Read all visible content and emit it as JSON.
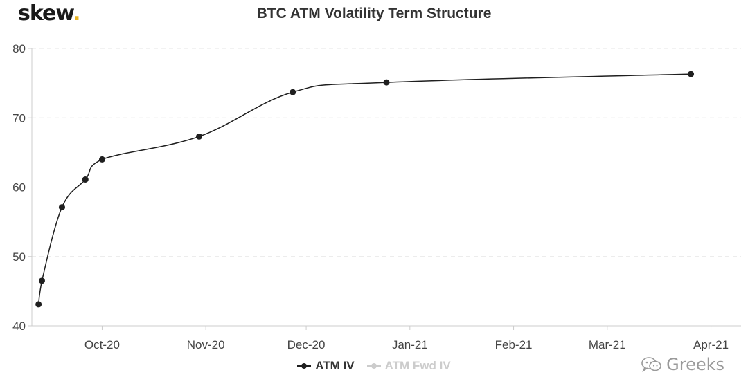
{
  "brand": {
    "name": "skew",
    "dot": "."
  },
  "watermark": {
    "text": "Greeks",
    "icon": "wechat-icon"
  },
  "colors": {
    "series_active": "#1f1f1f",
    "series_inactive": "#cccccc",
    "grid": "#e6e6e6",
    "brand_dot": "#e8b320"
  },
  "chart_data": {
    "type": "line",
    "title": "BTC ATM Volatility Term Structure",
    "xlabel": "",
    "ylabel": "",
    "ylim": [
      40,
      80
    ],
    "yticks": [
      40,
      50,
      60,
      70,
      80
    ],
    "xlim": [
      "2020-09-10",
      "2021-04-10"
    ],
    "xticks": [
      {
        "date": "2020-10-01",
        "label": "Oct-20"
      },
      {
        "date": "2020-11-01",
        "label": "Nov-20"
      },
      {
        "date": "2020-12-01",
        "label": "Dec-20"
      },
      {
        "date": "2021-01-01",
        "label": "Jan-21"
      },
      {
        "date": "2021-02-01",
        "label": "Feb-21"
      },
      {
        "date": "2021-03-01",
        "label": "Mar-21"
      },
      {
        "date": "2021-04-01",
        "label": "Apr-21"
      }
    ],
    "grid": "horizontal",
    "legend_position": "bottom-center",
    "series": [
      {
        "name": "ATM IV",
        "active": true,
        "points": [
          {
            "x": "2020-09-12",
            "y": 43.1
          },
          {
            "x": "2020-09-13",
            "y": 46.5
          },
          {
            "x": "2020-09-19",
            "y": 57.1
          },
          {
            "x": "2020-09-26",
            "y": 61.1
          },
          {
            "x": "2020-10-01",
            "y": 64.0
          },
          {
            "x": "2020-10-30",
            "y": 67.3
          },
          {
            "x": "2020-11-27",
            "y": 73.7
          },
          {
            "x": "2020-12-25",
            "y": 75.1
          },
          {
            "x": "2021-03-26",
            "y": 76.3
          }
        ]
      },
      {
        "name": "ATM Fwd IV",
        "active": false,
        "points": []
      }
    ]
  }
}
